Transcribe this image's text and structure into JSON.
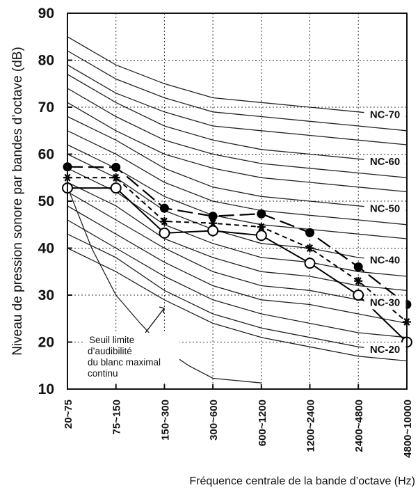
{
  "chart_data": {
    "type": "line",
    "title": "",
    "ylabel": "Niveau de pression sonore par bandes d’octave (dB)",
    "xlabel": "Fréquence centrale de la bande d’octave (Hz)",
    "categories": [
      "20~75",
      "75~150",
      "150~300",
      "300~600",
      "600~1200",
      "1200~2400",
      "2400~4800",
      "4800~10000"
    ],
    "ylim": [
      10,
      90
    ],
    "yticks": [
      "10",
      "20",
      "30",
      "40",
      "50",
      "60",
      "70",
      "80",
      "90"
    ],
    "grid": "dotted",
    "nc_curves": [
      {
        "name": "NC-70",
        "label": "NC-70",
        "values": [
          85,
          79,
          75,
          72,
          71,
          70,
          69,
          68
        ]
      },
      {
        "name": "",
        "label": "",
        "values": [
          82,
          76,
          72,
          69,
          68,
          67,
          66,
          65
        ]
      },
      {
        "name": "",
        "label": "",
        "values": [
          79,
          73,
          69,
          66,
          65,
          64,
          63,
          62
        ]
      },
      {
        "name": "NC-60",
        "label": "NC-60",
        "values": [
          77,
          71,
          66,
          63,
          61,
          60,
          59,
          58
        ]
      },
      {
        "name": "",
        "label": "",
        "values": [
          74,
          68,
          63,
          60,
          58,
          57,
          56,
          55
        ]
      },
      {
        "name": "",
        "label": "",
        "values": [
          71,
          65,
          60,
          57,
          55,
          54,
          53,
          52
        ]
      },
      {
        "name": "NC-50",
        "label": "NC-50",
        "values": [
          68,
          63,
          57,
          53,
          51,
          50,
          49,
          48
        ]
      },
      {
        "name": "",
        "label": "",
        "values": [
          65,
          60,
          54,
          50,
          48,
          47,
          46,
          45
        ]
      },
      {
        "name": "",
        "label": "",
        "values": [
          62,
          57,
          51,
          47,
          45,
          44,
          43,
          42
        ]
      },
      {
        "name": "NC-40",
        "label": "NC-40",
        "values": [
          60,
          55,
          48,
          44,
          41,
          40,
          38,
          37
        ]
      },
      {
        "name": "",
        "label": "",
        "values": [
          57,
          52,
          45,
          41,
          38,
          37,
          35,
          34
        ]
      },
      {
        "name": "",
        "label": "",
        "values": [
          54,
          49,
          42,
          38,
          35,
          34,
          32,
          31
        ]
      },
      {
        "name": "NC-30",
        "label": "NC-30",
        "values": [
          52,
          46,
          40,
          35,
          32,
          31,
          29,
          28
        ]
      },
      {
        "name": "",
        "label": "",
        "values": [
          49,
          43,
          37,
          32,
          29,
          28,
          26,
          24
        ]
      },
      {
        "name": "",
        "label": "",
        "values": [
          46,
          40,
          34,
          29,
          26,
          24,
          22,
          21
        ]
      },
      {
        "name": "NC-20",
        "label": "NC-20",
        "values": [
          43,
          38,
          31,
          26,
          23,
          21,
          19,
          18
        ]
      },
      {
        "name": "",
        "label": "",
        "values": [
          40,
          35,
          29,
          24,
          21,
          19,
          17,
          16
        ]
      }
    ],
    "threshold_curve": {
      "name": "Seuil limite d’audibilité du blanc maximal continu",
      "x": [
        0,
        0.5,
        1,
        1.5,
        2,
        2.5,
        3,
        4
      ],
      "values": [
        53,
        40,
        30,
        24,
        18.5,
        15,
        12.3,
        11.3
      ]
    },
    "series": [
      {
        "name": "",
        "marker": "filled-circle",
        "line": "long-dash",
        "values": [
          57.3,
          57.2,
          48.5,
          46.8,
          47.3,
          43.3,
          36,
          28
        ]
      },
      {
        "name": "",
        "marker": "asterisk",
        "line": "short-dash",
        "values": [
          55,
          55,
          45.7,
          45.3,
          44.5,
          40,
          33,
          24.3
        ]
      },
      {
        "name": "",
        "marker": "open-circle",
        "line": "solid",
        "values": [
          52.8,
          52.8,
          43.2,
          43.7,
          42.7,
          36.8,
          30,
          20
        ]
      }
    ],
    "annotation": {
      "lines": [
        "Seuil limite",
        "d’audibilité",
        "du blanc maximal",
        "continu"
      ]
    }
  }
}
